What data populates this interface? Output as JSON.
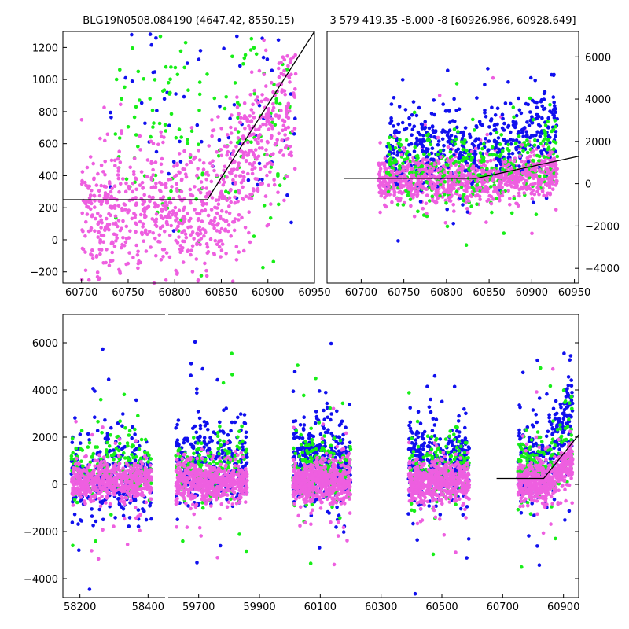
{
  "colors": {
    "blue": "#1010ee",
    "green": "#18ee18",
    "pink": "#ee5fe0",
    "line": "#000000"
  },
  "chart_data": [
    {
      "type": "scatter",
      "title": "BLG19N0508.084190 (4647.42, 8550.15)",
      "xlim": [
        60680,
        60950
      ],
      "ylim": [
        -270,
        1300
      ],
      "x_ticks": [
        60700,
        60750,
        60800,
        60850,
        60900,
        60950
      ],
      "y_ticks": [
        -200,
        0,
        200,
        400,
        600,
        800,
        1000,
        1200
      ],
      "y_axis_side": "left",
      "series": [
        {
          "color": "blue",
          "x_range": [
            60730,
            60930
          ],
          "y_center": 900,
          "y_spread": 350,
          "count": 80
        },
        {
          "color": "green",
          "x_range": [
            60735,
            60925
          ],
          "y_center": 750,
          "y_spread": 400,
          "count": 170
        },
        {
          "color": "pink",
          "x_range": [
            60700,
            60930
          ],
          "y_center": 250,
          "y_spread": 500,
          "count": 900
        }
      ],
      "model_line": [
        [
          60680,
          250
        ],
        [
          60835,
          250
        ],
        [
          60950,
          1300
        ]
      ]
    },
    {
      "type": "scatter",
      "title": "3 579 419.35 -8.000 -8 [60926.986, 60928.649]",
      "xlim": [
        60660,
        60955
      ],
      "ylim": [
        -4700,
        7200
      ],
      "x_ticks": [
        60700,
        60750,
        60800,
        60850,
        60900,
        60950
      ],
      "y_ticks": [
        -4000,
        -2000,
        0,
        2000,
        4000,
        6000
      ],
      "y_axis_side": "right",
      "series": [
        {
          "color": "blue",
          "x_range": [
            60730,
            60930
          ],
          "y_center": 1800,
          "y_spread": 900,
          "count": 500
        },
        {
          "color": "green",
          "x_range": [
            60730,
            60930
          ],
          "y_center": 700,
          "y_spread": 800,
          "count": 350
        },
        {
          "color": "pink",
          "x_range": [
            60720,
            60930
          ],
          "y_center": 200,
          "y_spread": 500,
          "count": 700
        }
      ],
      "model_line": [
        [
          60680,
          250
        ],
        [
          60835,
          250
        ],
        [
          60955,
          1300
        ]
      ]
    },
    {
      "type": "scatter",
      "title": "",
      "segments": [
        {
          "xlim": [
            58150,
            58450
          ],
          "x_ticks": [
            58200,
            58400
          ],
          "data_x": [
            58175,
            58410
          ]
        },
        {
          "xlim": [
            59600,
            60950
          ],
          "x_ticks": [
            59700,
            59900,
            60100,
            60300,
            60500,
            60700,
            60900
          ],
          "data_x_ranges": [
            [
              59625,
              59860
            ],
            [
              60010,
              60200
            ],
            [
              60390,
              60590
            ],
            [
              60750,
              60930
            ]
          ]
        }
      ],
      "ylim": [
        -4800,
        7200
      ],
      "y_ticks": [
        -4000,
        -2000,
        0,
        2000,
        4000,
        6000
      ],
      "series": [
        {
          "color": "blue",
          "y_center": 1000,
          "y_spread": 900
        },
        {
          "color": "green",
          "y_center": 700,
          "y_spread": 700
        },
        {
          "color": "pink",
          "y_center": 100,
          "y_spread": 400
        }
      ],
      "model_line": [
        [
          60680,
          250
        ],
        [
          60835,
          250
        ],
        [
          60950,
          2100
        ]
      ]
    }
  ]
}
